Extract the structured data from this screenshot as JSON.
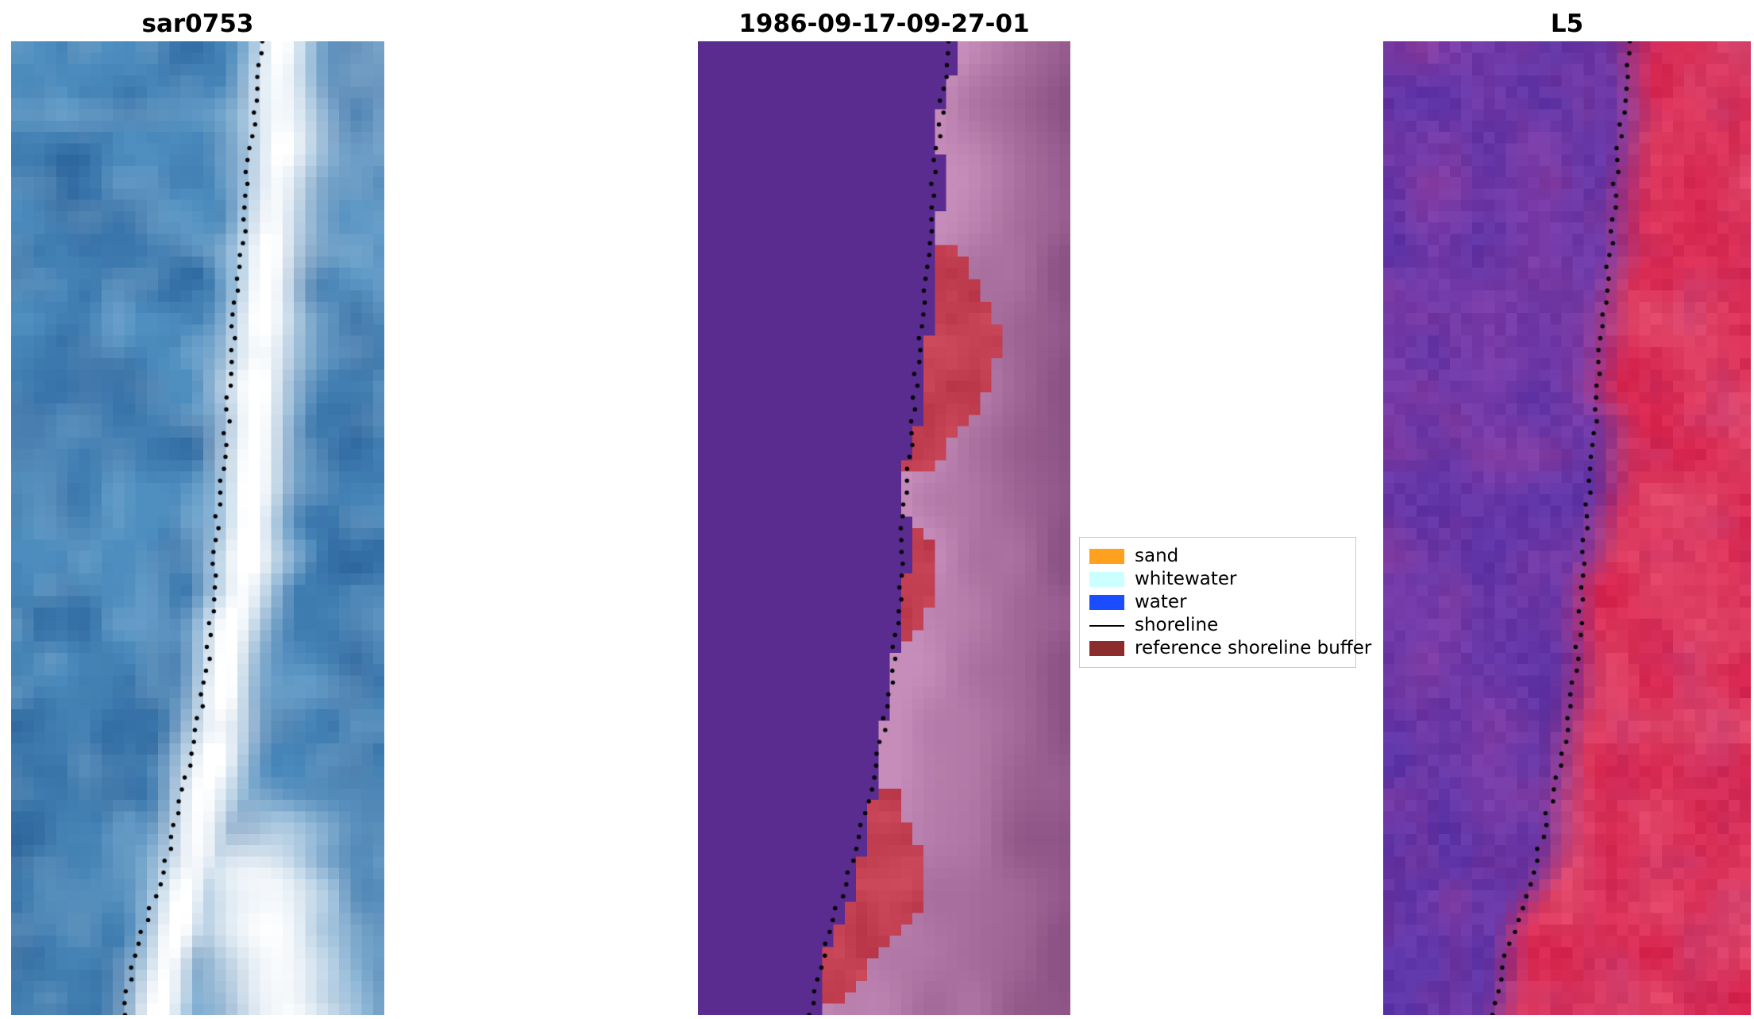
{
  "chart_data": {
    "type": "image",
    "layout": "one row, three co-registered image panels sharing one shoreline overlay; legend box between panel 2 and panel 3",
    "panels": [
      {
        "title": "sar0753",
        "style": "sar",
        "description": "SAR intensity image in blue tones with a bright white shore-parallel band and a white diagonal swath at the bottom",
        "seed": 7,
        "cols": 33,
        "rows": 86,
        "colors": {
          "water_dark": "#2a639b",
          "water_mid": "#4f8fc0",
          "water_light": "#a9c8e2",
          "deep": "#1e5286",
          "band": "#ffffff"
        }
      },
      {
        "title": "1986-09-17-09-27-01",
        "style": "classes",
        "description": "classified scene: solid purple water mask on the left, pink/mauve land on the right, red reference-shoreline-buffer patches hugging the boundary",
        "seed": 3,
        "cols": 33,
        "rows": 86,
        "colors": {
          "purple": "#5b2c90",
          "pink_light": "#c68cba",
          "pink_dark": "#8d5484",
          "red": "#c24052"
        },
        "red_patches": [
          {
            "y0": 0.21,
            "y1": 0.44,
            "w": 0.17
          },
          {
            "y0": 0.5,
            "y1": 0.62,
            "w": 0.07
          },
          {
            "y0": 0.77,
            "y1": 0.985,
            "w": 0.17
          }
        ]
      },
      {
        "title": "L5",
        "style": "l5",
        "description": "Landsat 5 false-colour composite: noisy purple water on the left grading into crimson/red land on the right",
        "seed": 11,
        "cols": 33,
        "rows": 86,
        "colors": {
          "purple_a": "#7d3da8",
          "purple_b": "#5c33a6",
          "purple_blue": "#4f35ae",
          "red_a": "#d6224c",
          "red_b": "#e2486b",
          "red_pale": "#e4708d"
        },
        "blend": 0.16,
        "offset": 0.03
      }
    ],
    "legend": {
      "items": [
        {
          "label": "sand",
          "marker": "patch",
          "color": "#ffa01e"
        },
        {
          "label": "whitewater",
          "marker": "patch",
          "color": "#ccffff"
        },
        {
          "label": "water",
          "marker": "patch",
          "color": "#1a4dff"
        },
        {
          "label": "shoreline",
          "marker": "line",
          "color": "#000000"
        },
        {
          "label": "reference shoreline buffer",
          "marker": "patch",
          "color": "#8c2c2c"
        }
      ]
    },
    "shoreline": {
      "marker": "black dots",
      "color": "#000000",
      "points_normalized": [
        [
          0.67,
          0.0
        ],
        [
          0.66,
          0.04
        ],
        [
          0.652,
          0.08
        ],
        [
          0.638,
          0.115
        ],
        [
          0.63,
          0.155
        ],
        [
          0.622,
          0.195
        ],
        [
          0.613,
          0.235
        ],
        [
          0.6,
          0.275
        ],
        [
          0.592,
          0.315
        ],
        [
          0.585,
          0.355
        ],
        [
          0.578,
          0.395
        ],
        [
          0.568,
          0.435
        ],
        [
          0.556,
          0.475
        ],
        [
          0.548,
          0.51
        ],
        [
          0.545,
          0.545
        ],
        [
          0.54,
          0.58
        ],
        [
          0.531,
          0.615
        ],
        [
          0.521,
          0.65
        ],
        [
          0.507,
          0.685
        ],
        [
          0.491,
          0.72
        ],
        [
          0.471,
          0.755
        ],
        [
          0.45,
          0.79
        ],
        [
          0.427,
          0.825
        ],
        [
          0.399,
          0.86
        ],
        [
          0.371,
          0.895
        ],
        [
          0.341,
          0.93
        ],
        [
          0.317,
          0.965
        ],
        [
          0.299,
          1.0
        ]
      ]
    }
  }
}
